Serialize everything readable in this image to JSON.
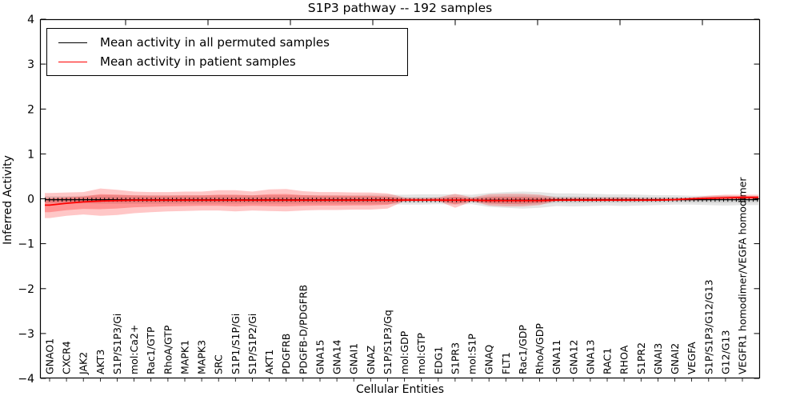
{
  "chart_data": {
    "type": "line",
    "title": "S1P3 pathway -- 192 samples",
    "xlabel": "Cellular Entities",
    "ylabel": "Inferred Activity",
    "ylim": [
      -4,
      4
    ],
    "yticks": [
      -4,
      -3,
      -2,
      -1,
      0,
      1,
      2,
      3,
      4
    ],
    "grid": false,
    "legend": {
      "position": "upper-left",
      "entries": [
        {
          "label": "Mean activity in all permuted samples",
          "color": "#000000"
        },
        {
          "label": "Mean activity in patient samples",
          "color": "#ff0000"
        }
      ]
    },
    "categories": [
      "GNAO1",
      "CXCR4",
      "JAK2",
      "AKT3",
      "S1P/S1P3/Gi",
      "mol:Ca2+",
      "Rac1/GTP",
      "RhoA/GTP",
      "MAPK1",
      "MAPK3",
      "SRC",
      "S1P1/S1P/Gi",
      "S1P/S1P2/Gi",
      "AKT1",
      "PDGFRB",
      "PDGFB-D/PDGFRB",
      "GNA15",
      "GNA14",
      "GNAI1",
      "GNAZ",
      "S1P/S1P3/Gq",
      "mol:GDP",
      "mol:GTP",
      "EDG1",
      "S1PR3",
      "mol:S1P",
      "GNAQ",
      "FLT1",
      "Rac1/GDP",
      "RhoA/GDP",
      "GNA11",
      "GNA12",
      "GNA13",
      "RAC1",
      "RHOA",
      "S1PR2",
      "GNAI3",
      "GNAI2",
      "VEGFA",
      "S1P/S1P3/G12/G13",
      "G12/G13",
      "VEGFR1 homodimer/VEGFA homodimer"
    ],
    "series": [
      {
        "name": "Mean activity in all permuted samples",
        "color": "#000000",
        "band_color": "#bbbbbb",
        "values": [
          -0.02,
          -0.02,
          -0.02,
          -0.02,
          -0.02,
          -0.02,
          -0.02,
          -0.02,
          -0.02,
          -0.02,
          -0.02,
          -0.02,
          -0.02,
          -0.02,
          -0.02,
          -0.02,
          -0.02,
          -0.02,
          -0.02,
          -0.02,
          -0.02,
          -0.03,
          -0.03,
          -0.03,
          -0.03,
          -0.03,
          -0.03,
          -0.03,
          -0.03,
          -0.03,
          -0.02,
          -0.02,
          -0.02,
          -0.02,
          -0.02,
          -0.02,
          -0.02,
          -0.02,
          -0.02,
          -0.02,
          -0.02,
          -0.02
        ],
        "band_upper": [
          0.06,
          0.06,
          0.07,
          0.08,
          0.08,
          0.08,
          0.08,
          0.08,
          0.08,
          0.08,
          0.08,
          0.08,
          0.08,
          0.08,
          0.08,
          0.08,
          0.08,
          0.08,
          0.08,
          0.09,
          0.09,
          0.09,
          0.1,
          0.1,
          0.1,
          0.09,
          0.13,
          0.15,
          0.16,
          0.15,
          0.12,
          0.12,
          0.11,
          0.1,
          0.1,
          0.09,
          0.08,
          0.08,
          0.07,
          0.07,
          0.07,
          0.06
        ],
        "band_lower": [
          -0.1,
          -0.1,
          -0.1,
          -0.11,
          -0.11,
          -0.11,
          -0.11,
          -0.11,
          -0.11,
          -0.11,
          -0.11,
          -0.11,
          -0.11,
          -0.11,
          -0.11,
          -0.11,
          -0.11,
          -0.11,
          -0.12,
          -0.12,
          -0.12,
          -0.13,
          -0.13,
          -0.12,
          -0.13,
          -0.12,
          -0.18,
          -0.2,
          -0.22,
          -0.2,
          -0.16,
          -0.17,
          -0.16,
          -0.15,
          -0.16,
          -0.15,
          -0.14,
          -0.13,
          -0.13,
          -0.14,
          -0.15,
          -0.14
        ]
      },
      {
        "name": "Mean activity in patient samples",
        "color": "#ff0000",
        "band_color": "#ff0000",
        "values": [
          -0.14,
          -0.1,
          -0.07,
          -0.05,
          -0.04,
          -0.03,
          -0.03,
          -0.03,
          -0.03,
          -0.03,
          -0.03,
          -0.03,
          -0.03,
          -0.03,
          -0.03,
          -0.03,
          -0.03,
          -0.03,
          -0.03,
          -0.03,
          -0.03,
          -0.03,
          -0.03,
          -0.03,
          -0.03,
          -0.03,
          -0.04,
          -0.04,
          -0.04,
          -0.04,
          -0.03,
          -0.03,
          -0.03,
          -0.03,
          -0.03,
          -0.03,
          -0.03,
          -0.02,
          0.0,
          0.01,
          0.02,
          0.03
        ],
        "band_upper": [
          0.13,
          0.14,
          0.15,
          0.23,
          0.2,
          0.16,
          0.15,
          0.15,
          0.16,
          0.16,
          0.19,
          0.19,
          0.16,
          0.21,
          0.22,
          0.17,
          0.15,
          0.15,
          0.14,
          0.14,
          0.12,
          0.03,
          0.02,
          0.03,
          0.11,
          0.03,
          0.1,
          0.11,
          0.11,
          0.09,
          0.03,
          0.03,
          0.03,
          0.03,
          0.03,
          0.02,
          0.02,
          0.02,
          0.03,
          0.07,
          0.09,
          0.09
        ],
        "band_lower": [
          -0.43,
          -0.38,
          -0.35,
          -0.38,
          -0.36,
          -0.32,
          -0.3,
          -0.28,
          -0.27,
          -0.26,
          -0.26,
          -0.28,
          -0.26,
          -0.27,
          -0.28,
          -0.26,
          -0.25,
          -0.25,
          -0.24,
          -0.24,
          -0.22,
          -0.05,
          -0.04,
          -0.05,
          -0.2,
          -0.06,
          -0.15,
          -0.17,
          -0.17,
          -0.14,
          -0.05,
          -0.05,
          -0.05,
          -0.05,
          -0.05,
          -0.05,
          -0.04,
          -0.04,
          -0.04,
          -0.03,
          -0.02,
          -0.02
        ]
      }
    ]
  }
}
